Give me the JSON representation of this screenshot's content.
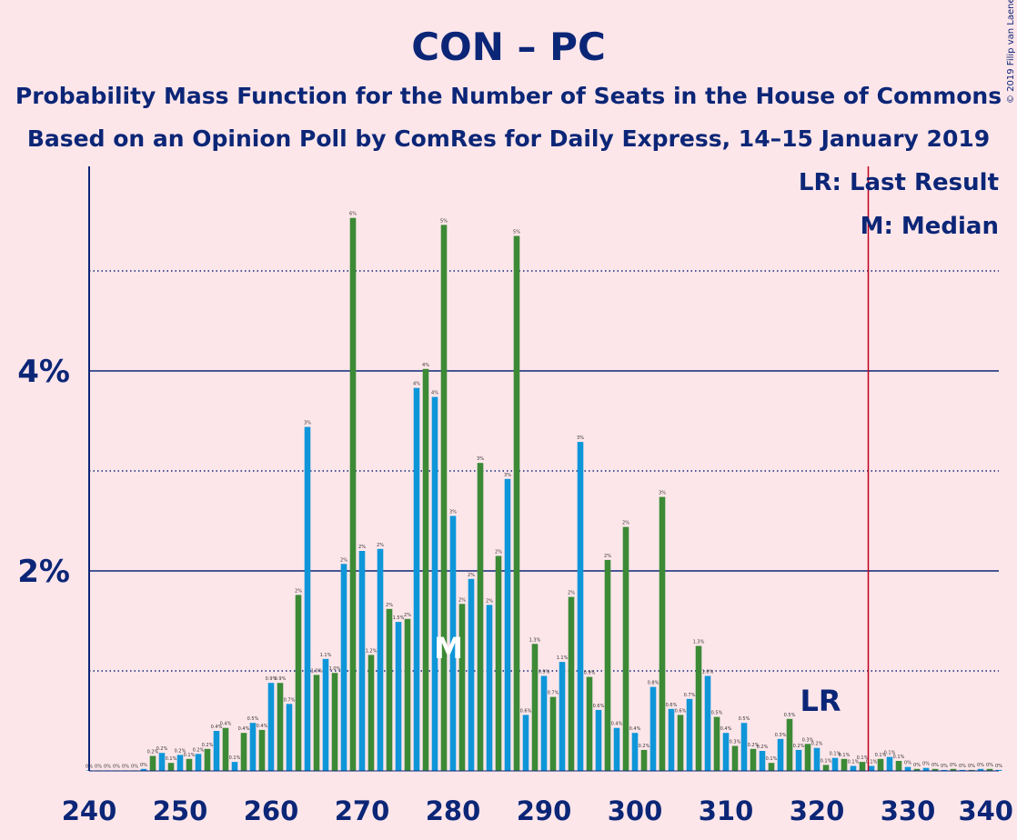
{
  "title": "CON – PC",
  "subtitle_1": "Probability Mass Function for the Number of Seats in the House of Commons",
  "subtitle_2": "Based on an Opinion Poll by ComRes for Daily Express, 14–15 January 2019",
  "copyright": "© 2019 Filip van Laenen",
  "legend": {
    "lr": "LR: Last Result",
    "m": "M: Median"
  },
  "markers": {
    "lr_label": "LR",
    "m_label": "M"
  },
  "colors": {
    "background": "#fde6ea",
    "blue_bar": "#0e96d9",
    "green_bar": "#3c8a35",
    "axis": "#0c2677",
    "last_result_line": "#c0001a"
  },
  "chart_data": {
    "type": "bar",
    "xlim": [
      240,
      340
    ],
    "ylim": [
      0,
      6
    ],
    "x_ticks": [
      240,
      250,
      260,
      270,
      280,
      290,
      300,
      310,
      320,
      330,
      340
    ],
    "y_ticks": [
      {
        "value": 2,
        "label": "2%"
      },
      {
        "value": 4,
        "label": "4%"
      }
    ],
    "grid": "dotted every 1%, solid at labelled ticks",
    "last_result": 326,
    "median": 280,
    "x": [
      240,
      241,
      242,
      243,
      244,
      245,
      246,
      247,
      248,
      249,
      250,
      251,
      252,
      253,
      254,
      255,
      256,
      257,
      258,
      259,
      260,
      261,
      262,
      263,
      264,
      265,
      266,
      267,
      268,
      269,
      270,
      271,
      272,
      273,
      274,
      275,
      276,
      277,
      278,
      279,
      280,
      281,
      282,
      283,
      284,
      285,
      286,
      287,
      288,
      289,
      290,
      291,
      292,
      293,
      294,
      295,
      296,
      297,
      298,
      299,
      300,
      301,
      302,
      303,
      304,
      305,
      306,
      307,
      308,
      309,
      310,
      311,
      312,
      313,
      314,
      315,
      316,
      317,
      318,
      319,
      320,
      321,
      322,
      323,
      324,
      325,
      326,
      327,
      328,
      329,
      330,
      331,
      332,
      333,
      334,
      335,
      336,
      337,
      338,
      339,
      340
    ],
    "values": [
      0.0,
      0.0,
      0.0,
      0.0,
      0.0,
      0.0,
      0.02,
      0.15,
      0.18,
      0.08,
      0.16,
      0.12,
      0.17,
      0.22,
      0.4,
      0.43,
      0.09,
      0.38,
      0.48,
      0.41,
      0.88,
      0.88,
      0.67,
      1.76,
      3.44,
      0.96,
      1.12,
      0.98,
      2.07,
      5.53,
      2.2,
      1.16,
      2.22,
      1.62,
      1.49,
      1.52,
      3.83,
      4.02,
      3.74,
      5.46,
      2.55,
      1.67,
      1.92,
      3.08,
      1.66,
      2.15,
      2.92,
      5.35,
      0.56,
      1.27,
      0.95,
      0.74,
      1.09,
      1.74,
      3.29,
      0.94,
      0.61,
      2.11,
      0.43,
      2.44,
      0.38,
      0.21,
      0.84,
      2.74,
      0.62,
      0.56,
      0.72,
      1.25,
      0.95,
      0.54,
      0.38,
      0.25,
      0.48,
      0.22,
      0.2,
      0.08,
      0.32,
      0.52,
      0.21,
      0.27,
      0.23,
      0.06,
      0.13,
      0.12,
      0.05,
      0.09,
      0.05,
      0.12,
      0.14,
      0.1,
      0.04,
      0.02,
      0.03,
      0.02,
      0.01,
      0.02,
      0.01,
      0.01,
      0.02,
      0.02,
      0.01
    ],
    "data_labels": [
      "0%",
      "0%",
      "0%",
      "0%",
      "0%",
      "0%",
      "0%",
      "0.2%",
      "0.2%",
      "0.1%",
      "0.2%",
      "0.1%",
      "0.2%",
      "0.2%",
      "0.4%",
      "0.4%",
      "0.1%",
      "0.4%",
      "0.5%",
      "0.4%",
      "0.9%",
      "0.9%",
      "0.7%",
      "2%",
      "3%",
      "1.0%",
      "1.1%",
      "1.0%",
      "2%",
      "6%",
      "2%",
      "1.2%",
      "2%",
      "2%",
      "1.5%",
      "2%",
      "4%",
      "4%",
      "4%",
      "5%",
      "3%",
      "2%",
      "2%",
      "3%",
      "2%",
      "2%",
      "3%",
      "5%",
      "0.6%",
      "1.3%",
      "0.9%",
      "0.7%",
      "1.1%",
      "2%",
      "3%",
      "0.9%",
      "0.6%",
      "2%",
      "0.4%",
      "2%",
      "0.4%",
      "0.2%",
      "0.8%",
      "3%",
      "0.6%",
      "0.6%",
      "0.7%",
      "1.3%",
      "1.0%",
      "0.5%",
      "0.4%",
      "0.3%",
      "0.5%",
      "0.2%",
      "0.2%",
      "0.1%",
      "0.3%",
      "0.5%",
      "0.2%",
      "0.3%",
      "0.2%",
      "0.1%",
      "0.1%",
      "0.1%",
      "0.1%",
      "0.1%",
      "0.1%",
      "0.1%",
      "0.1%",
      "0.1%",
      "0%",
      "0%",
      "0%",
      "0%",
      "0%",
      "0%",
      "0%",
      "0%",
      "0%",
      "0%",
      "0%"
    ]
  }
}
